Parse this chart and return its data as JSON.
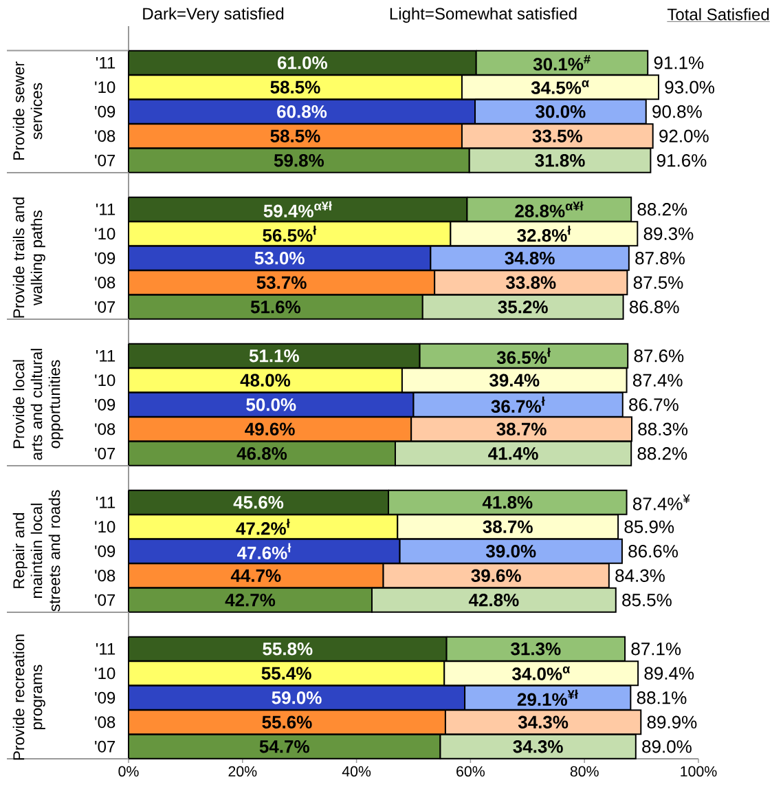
{
  "chart_data": [
    {
      "type": "bar",
      "orientation": "horizontal",
      "stacked": true,
      "ylabel": "Provide sewer services",
      "annotations": [
        "Dark=Very satisfied",
        "Light=Somewhat satisfied",
        "Total Satisfied"
      ],
      "categories": [
        "'11",
        "'10",
        "'09",
        "'08",
        "'07"
      ],
      "xlim": [
        0,
        100
      ],
      "tick_labels": "y",
      "series": [
        {
          "colors": [
            "#375e1e",
            "#ffff66",
            "#2e44c4",
            "#ff8c33",
            "#66963f"
          ],
          "values": [
            61.0,
            58.5,
            60.8,
            58.5,
            59.8
          ],
          "value_labels": [
            "61.0%",
            "58.5%",
            "60.8%",
            "58.5%",
            "59.8%"
          ]
        },
        {
          "colors": [
            "#93c274",
            "#ffffcc",
            "#8eaef8",
            "#ffcaa4",
            "#c5deae"
          ],
          "values": [
            30.1,
            34.5,
            30.0,
            33.5,
            31.8
          ],
          "value_labels": [
            "30.1%$^{#}$",
            "34.5%$^{α}$",
            "30.0%",
            "33.5%",
            "31.8%"
          ]
        }
      ],
      "totals": [
        "91.1%",
        "93.0%",
        "90.8%",
        "92.0%",
        "91.6%"
      ]
    },
    {
      "type": "bar",
      "orientation": "horizontal",
      "stacked": true,
      "ylabel": "Provide trails and walking paths",
      "categories": [
        "'11",
        "'10",
        "'09",
        "'08",
        "'07"
      ],
      "xlim": [
        0,
        100
      ],
      "tick_labels": "y",
      "series": [
        {
          "colors": [
            "#375e1e",
            "#ffff66",
            "#2e44c4",
            "#ff8c33",
            "#66963f"
          ],
          "values": [
            59.4,
            56.5,
            53.0,
            53.7,
            51.6
          ],
          "value_labels": [
            "59.4%$^{α¥ł}$",
            "56.5%$^{ł}$",
            "53.0%",
            "53.7%",
            "51.6%"
          ]
        },
        {
          "colors": [
            "#93c274",
            "#ffffcc",
            "#8eaef8",
            "#ffcaa4",
            "#c5deae"
          ],
          "values": [
            28.8,
            32.8,
            34.8,
            33.8,
            35.2
          ],
          "value_labels": [
            "28.8%$^{α¥ł}$",
            "32.8%$^{ł}$",
            "34.8%",
            "33.8%",
            "35.2%"
          ]
        }
      ],
      "totals": [
        "88.2%",
        "89.3%",
        "87.8%",
        "87.5%",
        "86.8%"
      ]
    },
    {
      "type": "bar",
      "orientation": "horizontal",
      "stacked": true,
      "ylabel": "Provide local arts and cultural opportunities",
      "categories": [
        "'11",
        "'10",
        "'09",
        "'08",
        "'07"
      ],
      "xlim": [
        0,
        100
      ],
      "tick_labels": "y",
      "series": [
        {
          "colors": [
            "#375e1e",
            "#ffff66",
            "#2e44c4",
            "#ff8c33",
            "#66963f"
          ],
          "values": [
            51.1,
            48.0,
            50.0,
            49.6,
            46.8
          ],
          "value_labels": [
            "51.1%",
            "48.0%",
            "50.0%",
            "49.6%",
            "46.8%"
          ]
        },
        {
          "colors": [
            "#93c274",
            "#ffffcc",
            "#8eaef8",
            "#ffcaa4",
            "#c5deae"
          ],
          "values": [
            36.5,
            39.4,
            36.7,
            38.7,
            41.4
          ],
          "value_labels": [
            "36.5%$^{ł}$",
            "39.4%",
            "36.7%$^{ł}$",
            "38.7%",
            "41.4%"
          ]
        }
      ],
      "totals": [
        "87.6%",
        "87.4%",
        "86.7%",
        "88.3%",
        "88.2%"
      ]
    },
    {
      "type": "bar",
      "orientation": "horizontal",
      "stacked": true,
      "ylabel": "Repair and maintain local streets and roads",
      "categories": [
        "'11",
        "'10",
        "'09",
        "'08",
        "'07"
      ],
      "xlim": [
        0,
        100
      ],
      "tick_labels": "y",
      "series": [
        {
          "colors": [
            "#375e1e",
            "#ffff66",
            "#2e44c4",
            "#ff8c33",
            "#66963f"
          ],
          "values": [
            45.6,
            47.2,
            47.6,
            44.7,
            42.7
          ],
          "value_labels": [
            "45.6%",
            "47.2%$^{ł}$",
            "47.6%$^{ł}$",
            "44.7%",
            "42.7%"
          ]
        },
        {
          "colors": [
            "#93c274",
            "#ffffcc",
            "#8eaef8",
            "#ffcaa4",
            "#c5deae"
          ],
          "values": [
            41.8,
            38.7,
            39.0,
            39.6,
            42.8
          ],
          "value_labels": [
            "41.8%",
            "38.7%",
            "39.0%",
            "39.6%",
            "42.8%"
          ]
        }
      ],
      "totals": [
        "87.4%$^{¥}$",
        "85.9%",
        "86.6%",
        "84.3%",
        "85.5%"
      ]
    },
    {
      "type": "bar",
      "orientation": "horizontal",
      "stacked": true,
      "ylabel": "Provide recreation programs",
      "categories": [
        "'11",
        "'10",
        "'09",
        "'08",
        "'07"
      ],
      "xlim": [
        0,
        100
      ],
      "xticks": [
        {
          "value": 0,
          "label": "0%"
        },
        {
          "value": 20,
          "label": "20%"
        },
        {
          "value": 40,
          "label": "40%"
        },
        {
          "value": 60,
          "label": "60%"
        },
        {
          "value": 80,
          "label": "80%"
        },
        {
          "value": 100,
          "label": "100%"
        }
      ],
      "series": [
        {
          "colors": [
            "#375e1e",
            "#ffff66",
            "#2e44c4",
            "#ff8c33",
            "#66963f"
          ],
          "values": [
            55.8,
            55.4,
            59.0,
            55.6,
            54.7
          ],
          "value_labels": [
            "55.8%",
            "55.4%",
            "59.0%",
            "55.6%",
            "54.7%"
          ]
        },
        {
          "colors": [
            "#93c274",
            "#ffffcc",
            "#8eaef8",
            "#ffcaa4",
            "#c5deae"
          ],
          "values": [
            31.3,
            34.0,
            29.1,
            34.3,
            34.3
          ],
          "value_labels": [
            "31.3%",
            "34.0%$^{α}$",
            "29.1%$^{¥ł}$",
            "34.3%",
            "34.3%"
          ]
        }
      ],
      "totals": [
        "87.1%",
        "89.4%",
        "88.1%",
        "89.9%",
        "89.0%"
      ]
    }
  ]
}
